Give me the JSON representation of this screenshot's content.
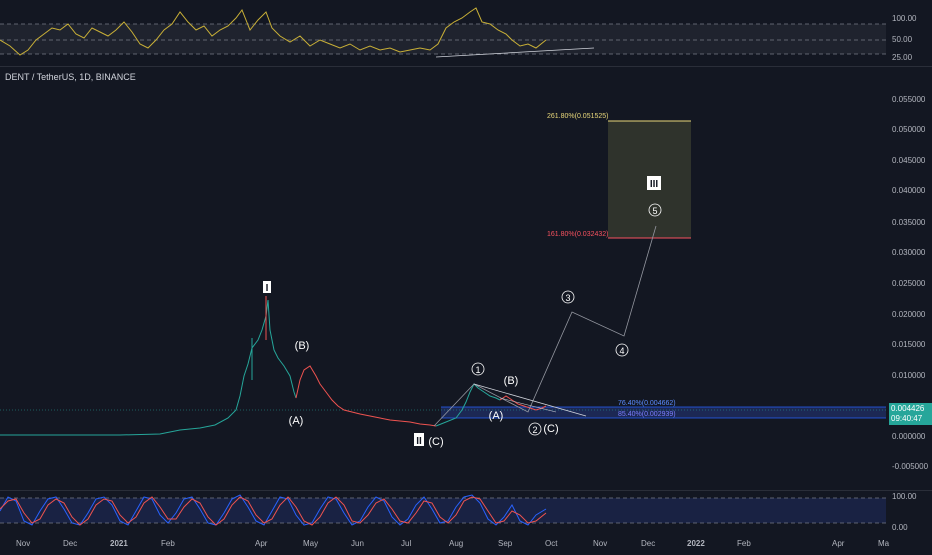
{
  "symbol": {
    "title": "DENT / TetherUS, 1D, BINANCE"
  },
  "price_tag": {
    "last": "0.004426",
    "countdown": "09:40:47"
  },
  "rsi_axis": [
    "100.00",
    "50.00",
    "25.00"
  ],
  "stoch_axis": [
    "100.00",
    "0.00"
  ],
  "price_axis": [
    "0.055000",
    "0.050000",
    "0.045000",
    "0.040000",
    "0.035000",
    "0.030000",
    "0.025000",
    "0.020000",
    "0.015000",
    "0.010000",
    "0.000000",
    "-0.005000"
  ],
  "time_axis": [
    "Nov",
    "Dec",
    "2021",
    "Feb",
    "Apr",
    "May",
    "Jun",
    "Jul",
    "Aug",
    "Sep",
    "Oct",
    "Nov",
    "Dec",
    "2022",
    "Feb",
    "Apr",
    "Ma"
  ],
  "fib": {
    "top": "261.80%(0.051525)",
    "bottom": "161.80%(0.032432)",
    "retr_upper": "76.40%(0.004662)",
    "retr_lower": "85.40%(0.002939)"
  },
  "waves": {
    "I": "I",
    "II": "II",
    "III": "III",
    "A1": "(A)",
    "B1": "(B)",
    "C1": "(C)",
    "w1": "1",
    "w2": "2",
    "w3": "3",
    "w4": "4",
    "w5": "5",
    "A2": "(A)",
    "B2": "(B)",
    "C2": "(C)"
  },
  "colors": {
    "background": "#131722",
    "up": "#26a69a",
    "down": "#ef5350",
    "rsi": "#c9b037",
    "fib_top": "#e8d77a",
    "fib_bottom": "#f7525f",
    "retr": "#2962ff"
  }
}
